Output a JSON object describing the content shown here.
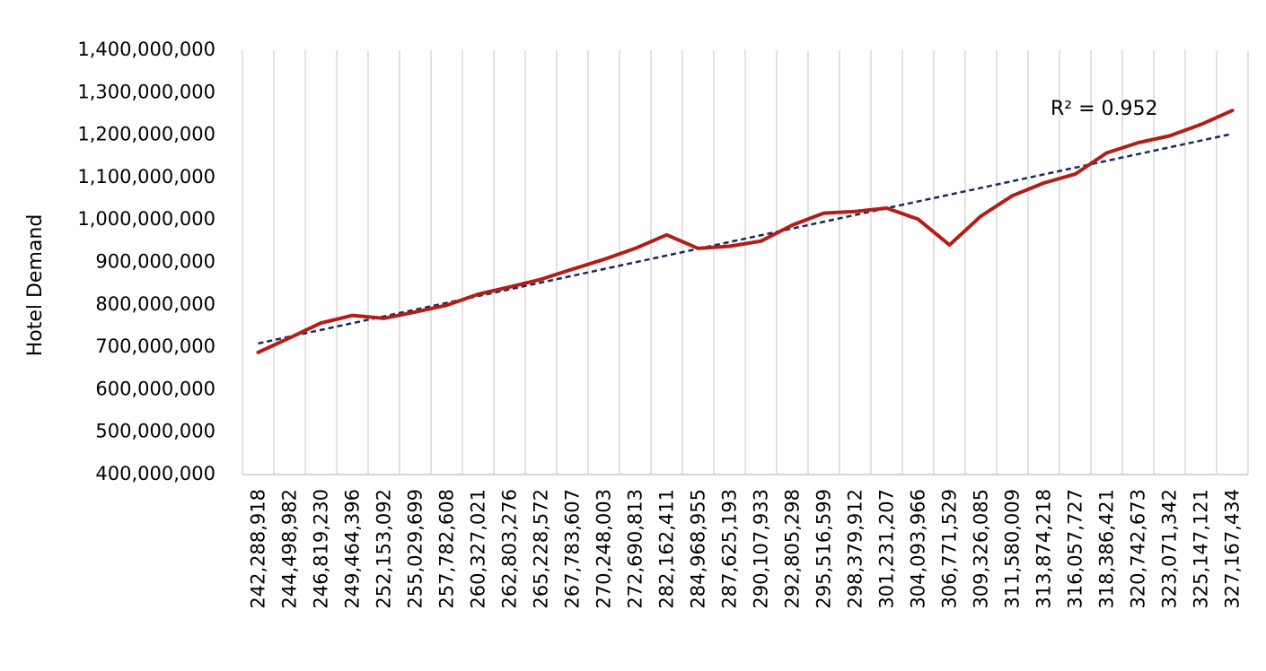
{
  "chart_data": {
    "type": "line",
    "title": "",
    "xlabel": "",
    "ylabel": "Hotel Demand",
    "ylim": [
      400000000,
      1400000000
    ],
    "yticks": [
      "400,000,000",
      "500,000,000",
      "600,000,000",
      "700,000,000",
      "800,000,000",
      "900,000,000",
      "1,000,000,000",
      "1,100,000,000",
      "1,200,000,000",
      "1,300,000,000",
      "1,400,000,000"
    ],
    "categories": [
      "242,288,918",
      "244,498,982",
      "246,819,230",
      "249,464,396",
      "252,153,092",
      "255,029,699",
      "257,782,608",
      "260,327,021",
      "262,803,276",
      "265,228,572",
      "267,783,607",
      "270,248,003",
      "272,690,813",
      "282,162,411",
      "284,968,955",
      "287,625,193",
      "290,107,933",
      "292,805,298",
      "295,516,599",
      "298,379,912",
      "301,231,207",
      "304,093,966",
      "306,771,529",
      "309,326,085",
      "311,580,009",
      "313,874,218",
      "316,057,727",
      "318,386,421",
      "320,742,673",
      "323,071,342",
      "325,147,121",
      "327,167,434"
    ],
    "grid": true,
    "series": [
      {
        "values": [
          688000000,
          722000000,
          757000000,
          775000000,
          768000000,
          783000000,
          799000000,
          825000000,
          842000000,
          860000000,
          884000000,
          907000000,
          933000000,
          965000000,
          933000000,
          938000000,
          950000000,
          988000000,
          1016000000,
          1020000000,
          1028000000,
          1002000000,
          941000000,
          1009000000,
          1057000000,
          1087000000,
          1108000000,
          1158000000,
          1182000000,
          1198000000,
          1225000000,
          1258000000
        ],
        "color": "#b21e17",
        "style": "solid"
      }
    ],
    "trendline": {
      "type": "linear",
      "start": 709000000,
      "end": 1203000000,
      "color": "#1a2b5a",
      "style": "dashed",
      "r2_label": "R² = 0.952"
    }
  }
}
